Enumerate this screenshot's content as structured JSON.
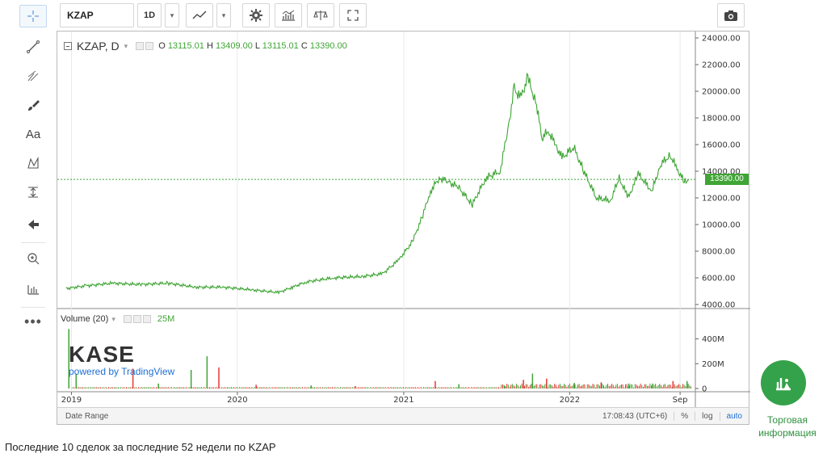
{
  "toolbar": {
    "symbol": "KZAP",
    "interval": "1D",
    "dropdown_caret": "▾"
  },
  "legend": {
    "symbol_interval": "KZAP, D",
    "dropdown_caret": "▾",
    "open_label": "O",
    "open": "13115.01",
    "high_label": "H",
    "high": "13409.00",
    "low_label": "L",
    "low": "13115.01",
    "close_label": "C",
    "close": "13390.00"
  },
  "volume_legend": {
    "label": "Volume (20)",
    "dropdown_caret": "▾",
    "value": "25M"
  },
  "price_tag": "13390.00",
  "kase_logo": {
    "brand": "KASE",
    "powered": "powered by TradingView"
  },
  "status_bar": {
    "date_range": "Date Range",
    "time": "17:08:43 (UTC+6)",
    "percent": "%",
    "log": "log",
    "auto": "auto"
  },
  "trade_info": {
    "label_line1": "Торговая",
    "label_line2": "информация"
  },
  "footer": {
    "heading": "Последние 10 сделок за последние 52 недели по KZAP"
  },
  "colors": {
    "line": "#3fa535",
    "volume_up": "#3fa535",
    "volume_down": "#e53935",
    "accent_button": "#34a24a",
    "link": "#1e6fd6"
  },
  "chart_data": {
    "type": "line",
    "title": "",
    "price_axis": {
      "ticks": [
        "24000.00",
        "22000.00",
        "20000.00",
        "18000.00",
        "16000.00",
        "14000.00",
        "12000.00",
        "10000.00",
        "8000.00",
        "6000.00",
        "4000.00"
      ],
      "ylim": [
        4000,
        24000
      ]
    },
    "volume_axis": {
      "ticks": [
        "400M",
        "200M",
        "0"
      ],
      "ylim": [
        0,
        560
      ]
    },
    "time_axis": {
      "ticks": [
        "2019",
        "2020",
        "2021",
        "2022",
        "Sep"
      ],
      "xlim": [
        "2018-12-01",
        "2022-10-01"
      ]
    },
    "series": [
      {
        "values_x": [
          "2018-12-20",
          "2019-02-01",
          "2019-04-01",
          "2019-06-01",
          "2019-08-01",
          "2019-10-01",
          "2019-12-01",
          "2020-02-01",
          "2020-04-01",
          "2020-05-01",
          "2020-06-01",
          "2020-08-01",
          "2020-10-01",
          "2020-11-15",
          "2020-12-20",
          "2021-01-20",
          "2021-02-10",
          "2021-03-01",
          "2021-03-20",
          "2021-04-10",
          "2021-05-01",
          "2021-06-01",
          "2021-07-01",
          "2021-08-01",
          "2021-08-20",
          "2021-09-01",
          "2021-09-15",
          "2021-10-01",
          "2021-10-20",
          "2021-11-01",
          "2021-11-15",
          "2021-12-01",
          "2021-12-15",
          "2022-01-10",
          "2022-02-01",
          "2022-03-01",
          "2022-04-01",
          "2022-04-20",
          "2022-05-10",
          "2022-06-01",
          "2022-07-01",
          "2022-07-20",
          "2022-08-10",
          "2022-08-25",
          "2022-09-10",
          "2022-09-20"
        ],
        "values": [
          5200,
          5400,
          5600,
          5500,
          5600,
          5300,
          5300,
          5100,
          4900,
          5300,
          5700,
          6000,
          6100,
          6300,
          7300,
          8700,
          10500,
          12500,
          13500,
          13200,
          12800,
          11500,
          13500,
          14000,
          17500,
          20200,
          19500,
          21000,
          19000,
          16500,
          17000,
          16000,
          15000,
          15800,
          14000,
          12000,
          11800,
          13500,
          12000,
          13800,
          12500,
          14500,
          15200,
          14200,
          13200,
          13390
        ]
      }
    ],
    "volume": {
      "dates": [
        "2018-12-25",
        "2019-01-10",
        "2019-05-15",
        "2019-07-10",
        "2019-09-20",
        "2019-10-25",
        "2019-11-20",
        "2020-02-10",
        "2020-06-10",
        "2020-09-15",
        "2021-03-10",
        "2021-05-01",
        "2021-08-10",
        "2021-09-20",
        "2021-10-10",
        "2021-11-10",
        "2022-01-10",
        "2022-03-10",
        "2022-05-10",
        "2022-07-01",
        "2022-08-15",
        "2022-09-15"
      ],
      "values_m": [
        480,
        120,
        160,
        40,
        150,
        260,
        170,
        30,
        25,
        20,
        60,
        35,
        20,
        70,
        120,
        80,
        45,
        50,
        40,
        40,
        60,
        60
      ],
      "direction": [
        "up",
        "up",
        "down",
        "up",
        "up",
        "up",
        "down",
        "down",
        "up",
        "down",
        "down",
        "up",
        "up",
        "down",
        "up",
        "down",
        "up",
        "down",
        "up",
        "up",
        "down",
        "up"
      ]
    },
    "grid": true,
    "price_line": 13390
  }
}
